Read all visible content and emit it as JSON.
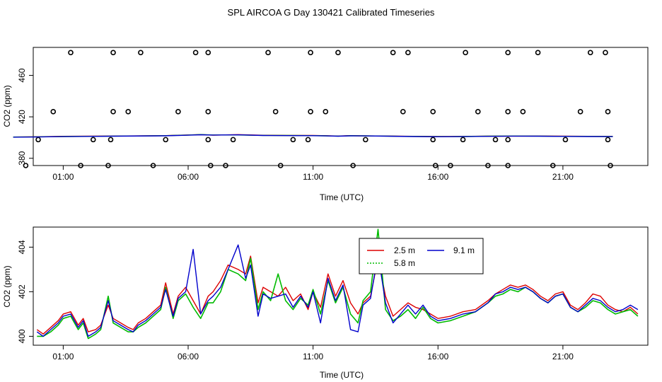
{
  "title": "SPL AIRCOA G  Day 130421  Calibrated Timeseries",
  "chart_data": [
    {
      "type": "scatter",
      "xlabel": "Time (UTC)",
      "ylabel": "CO2 (ppm)",
      "x_ticks": [
        1,
        6,
        11,
        16,
        21
      ],
      "x_tick_labels": [
        "01:00",
        "06:00",
        "11:00",
        "16:00",
        "21:00"
      ],
      "y_ticks": [
        380,
        420,
        460
      ],
      "y_tick_labels": [
        "380",
        "420",
        "460"
      ],
      "xlim": [
        -0.2,
        24.4
      ],
      "ylim": [
        373,
        487
      ],
      "markers": [
        [
          1.3,
          482
        ],
        [
          3.0,
          482
        ],
        [
          4.1,
          482
        ],
        [
          6.3,
          482
        ],
        [
          6.8,
          482
        ],
        [
          9.2,
          482
        ],
        [
          10.9,
          482
        ],
        [
          12.0,
          482
        ],
        [
          14.2,
          482
        ],
        [
          14.8,
          482
        ],
        [
          17.1,
          482
        ],
        [
          18.8,
          482
        ],
        [
          20.0,
          482
        ],
        [
          22.1,
          482
        ],
        [
          22.7,
          482
        ],
        [
          0.6,
          425
        ],
        [
          3.0,
          425
        ],
        [
          3.6,
          425
        ],
        [
          5.6,
          425
        ],
        [
          6.8,
          425
        ],
        [
          9.5,
          425
        ],
        [
          10.9,
          425
        ],
        [
          11.5,
          425
        ],
        [
          14.6,
          425
        ],
        [
          15.8,
          425
        ],
        [
          17.6,
          425
        ],
        [
          18.8,
          425
        ],
        [
          19.4,
          425
        ],
        [
          21.7,
          425
        ],
        [
          22.8,
          425
        ],
        [
          0,
          398
        ],
        [
          2.2,
          398
        ],
        [
          2.9,
          398
        ],
        [
          5.1,
          398
        ],
        [
          6.8,
          398
        ],
        [
          7.8,
          398
        ],
        [
          10.2,
          398
        ],
        [
          10.8,
          398
        ],
        [
          13.1,
          398
        ],
        [
          15.8,
          398
        ],
        [
          17.0,
          398
        ],
        [
          18.3,
          398
        ],
        [
          18.8,
          398
        ],
        [
          21.1,
          398
        ],
        [
          22.8,
          398
        ],
        [
          -0.5,
          373
        ],
        [
          1.7,
          373
        ],
        [
          2.8,
          373
        ],
        [
          4.6,
          373
        ],
        [
          6.9,
          373
        ],
        [
          7.5,
          373
        ],
        [
          9.7,
          373
        ],
        [
          12.6,
          373
        ],
        [
          15.9,
          373
        ],
        [
          16.5,
          373
        ],
        [
          18.0,
          373
        ],
        [
          18.8,
          373
        ],
        [
          20.6,
          373
        ],
        [
          22.9,
          373
        ]
      ],
      "series": [
        {
          "name": "2.5 m",
          "color": "#dd0000",
          "x": [
            -1,
            0,
            1,
            3,
            5,
            6,
            6.5,
            7,
            8,
            9,
            10,
            11,
            11.5,
            12,
            12.5,
            13,
            14,
            15,
            16,
            17,
            18,
            19,
            20,
            21,
            22,
            23
          ],
          "y": [
            400.5,
            400.8,
            401.2,
            401.5,
            401.8,
            402.5,
            402.8,
            402.3,
            402.8,
            402.2,
            402.1,
            402.0,
            401.8,
            401.5,
            401.9,
            401.6,
            401.5,
            401.2,
            401.0,
            401.1,
            401.3,
            401.4,
            401.5,
            401.3,
            401.2,
            401.1
          ]
        },
        {
          "name": "5.8 m",
          "color": "#00bb00",
          "x": [
            -1,
            0,
            1,
            3,
            5,
            6,
            6.5,
            7,
            8,
            9,
            10,
            11,
            11.5,
            12,
            12.5,
            13,
            14,
            15,
            16,
            17,
            18,
            19,
            20,
            21,
            22,
            23
          ],
          "y": [
            400.5,
            400.7,
            401.0,
            401.4,
            401.8,
            402.4,
            402.9,
            402.5,
            402.5,
            402.1,
            402.0,
            401.9,
            401.7,
            401.4,
            401.8,
            401.7,
            401.4,
            401.1,
            400.9,
            401.0,
            401.3,
            401.5,
            401.4,
            401.2,
            401.1,
            401.0
          ]
        },
        {
          "name": "9.1 m",
          "color": "#0000cc",
          "x": [
            -1,
            0,
            1,
            3,
            5,
            6,
            6.5,
            7,
            8,
            9,
            10,
            11,
            11.5,
            12,
            12.5,
            13,
            14,
            15,
            16,
            17,
            18,
            19,
            20,
            21,
            22,
            23
          ],
          "y": [
            400.4,
            400.6,
            400.9,
            401.3,
            401.7,
            402.3,
            402.7,
            402.4,
            402.6,
            402.0,
            401.9,
            401.8,
            401.6,
            401.3,
            401.7,
            401.6,
            401.3,
            401.0,
            400.8,
            400.9,
            401.2,
            401.4,
            401.3,
            401.1,
            401.0,
            400.9
          ]
        }
      ]
    },
    {
      "type": "line",
      "xlabel": "Time (UTC)",
      "ylabel": "CO2 (ppm)",
      "x_ticks": [
        1,
        6,
        11,
        16,
        21
      ],
      "x_tick_labels": [
        "01:00",
        "06:00",
        "11:00",
        "16:00",
        "21:00"
      ],
      "y_ticks": [
        400,
        402,
        404
      ],
      "y_tick_labels": [
        "400",
        "402",
        "404"
      ],
      "xlim": [
        -0.2,
        24.4
      ],
      "ylim": [
        399.6,
        404.9
      ],
      "legend": {
        "position": "top-center",
        "entries": [
          "2.5 m",
          "5.8 m",
          "9.1 m"
        ]
      },
      "series": [
        {
          "name": "2.5 m",
          "color": "#dd0000",
          "x": [
            -0.05,
            0.2,
            0.5,
            0.8,
            1.0,
            1.3,
            1.6,
            1.8,
            2.0,
            2.3,
            2.5,
            2.8,
            3.0,
            3.3,
            3.6,
            3.8,
            4.0,
            4.3,
            4.6,
            4.9,
            5.1,
            5.4,
            5.6,
            5.9,
            6.2,
            6.5,
            6.8,
            7.0,
            7.3,
            7.6,
            8.0,
            8.3,
            8.5,
            8.8,
            9.0,
            9.3,
            9.6,
            9.9,
            10.2,
            10.5,
            10.8,
            11.0,
            11.3,
            11.6,
            11.9,
            12.2,
            12.5,
            12.8,
            13.0,
            13.3,
            13.6,
            13.9,
            14.2,
            14.5,
            14.8,
            15.1,
            15.4,
            15.7,
            16.0,
            16.5,
            17.0,
            17.5,
            18.0,
            18.3,
            18.6,
            18.9,
            19.2,
            19.5,
            19.8,
            20.1,
            20.4,
            20.7,
            21.0,
            21.3,
            21.6,
            21.9,
            22.2,
            22.5,
            22.8,
            23.1,
            23.4,
            23.7,
            24.0
          ],
          "y": [
            400.3,
            400.1,
            400.4,
            400.7,
            401.0,
            401.1,
            400.5,
            400.8,
            400.2,
            400.3,
            400.5,
            401.4,
            400.8,
            400.6,
            400.4,
            400.3,
            400.6,
            400.8,
            401.1,
            401.4,
            402.4,
            401.0,
            401.8,
            402.2,
            401.6,
            401.0,
            401.8,
            402.0,
            402.5,
            403.2,
            403.0,
            402.8,
            403.6,
            401.5,
            402.2,
            402.0,
            401.8,
            402.2,
            401.6,
            401.9,
            401.2,
            402.0,
            401.3,
            402.8,
            401.8,
            402.5,
            401.5,
            401.0,
            401.5,
            401.8,
            403.5,
            401.8,
            400.9,
            401.2,
            401.5,
            401.3,
            401.2,
            401.0,
            400.8,
            400.9,
            401.1,
            401.2,
            401.6,
            401.9,
            402.1,
            402.3,
            402.2,
            402.3,
            402.1,
            401.8,
            401.6,
            401.9,
            402.0,
            401.4,
            401.2,
            401.5,
            401.9,
            401.8,
            401.4,
            401.2,
            401.1,
            401.3,
            401.0
          ]
        },
        {
          "name": "5.8 m",
          "color": "#00bb00",
          "x": [
            -0.05,
            0.2,
            0.5,
            0.8,
            1.0,
            1.3,
            1.6,
            1.8,
            2.0,
            2.3,
            2.5,
            2.8,
            3.0,
            3.3,
            3.6,
            3.8,
            4.0,
            4.3,
            4.6,
            4.9,
            5.1,
            5.4,
            5.6,
            5.9,
            6.2,
            6.5,
            6.8,
            7.0,
            7.3,
            7.6,
            8.0,
            8.3,
            8.5,
            8.8,
            9.0,
            9.3,
            9.6,
            9.9,
            10.2,
            10.5,
            10.8,
            11.0,
            11.3,
            11.6,
            11.9,
            12.2,
            12.5,
            12.8,
            13.0,
            13.3,
            13.6,
            13.9,
            14.2,
            14.5,
            14.8,
            15.1,
            15.4,
            15.7,
            16.0,
            16.5,
            17.0,
            17.5,
            18.0,
            18.3,
            18.6,
            18.9,
            19.2,
            19.5,
            19.8,
            20.1,
            20.4,
            20.7,
            21.0,
            21.3,
            21.6,
            21.9,
            22.2,
            22.5,
            22.8,
            23.1,
            23.4,
            23.7,
            24.0
          ],
          "y": [
            400.0,
            400.0,
            400.2,
            400.5,
            400.8,
            400.9,
            400.3,
            400.6,
            399.9,
            400.1,
            400.3,
            401.8,
            400.6,
            400.4,
            400.2,
            400.2,
            400.4,
            400.6,
            400.9,
            401.2,
            402.2,
            400.8,
            401.6,
            401.9,
            401.3,
            400.8,
            401.5,
            401.5,
            402.0,
            403.0,
            402.8,
            402.5,
            403.5,
            401.2,
            402.0,
            401.6,
            402.8,
            401.6,
            401.2,
            401.7,
            401.4,
            402.1,
            401.0,
            402.5,
            401.5,
            402.2,
            401.0,
            400.6,
            401.6,
            402.0,
            404.8,
            401.2,
            400.7,
            400.9,
            401.2,
            400.8,
            401.3,
            400.8,
            400.6,
            400.7,
            400.9,
            401.1,
            401.5,
            401.8,
            401.9,
            402.1,
            402.0,
            402.2,
            402.0,
            401.7,
            401.5,
            401.8,
            401.9,
            401.3,
            401.1,
            401.3,
            401.6,
            401.5,
            401.2,
            401.0,
            401.1,
            401.2,
            400.9
          ]
        },
        {
          "name": "9.1 m",
          "color": "#0000cc",
          "x": [
            -0.05,
            0.2,
            0.5,
            0.8,
            1.0,
            1.3,
            1.6,
            1.8,
            2.0,
            2.3,
            2.5,
            2.8,
            3.0,
            3.3,
            3.6,
            3.8,
            4.0,
            4.3,
            4.6,
            4.9,
            5.1,
            5.4,
            5.6,
            5.9,
            6.2,
            6.5,
            6.8,
            7.0,
            7.3,
            7.6,
            8.0,
            8.3,
            8.5,
            8.8,
            9.0,
            9.3,
            9.6,
            9.9,
            10.2,
            10.5,
            10.8,
            11.0,
            11.3,
            11.6,
            11.9,
            12.2,
            12.5,
            12.8,
            13.0,
            13.3,
            13.6,
            13.9,
            14.2,
            14.5,
            14.8,
            15.1,
            15.4,
            15.7,
            16.0,
            16.5,
            17.0,
            17.5,
            18.0,
            18.3,
            18.6,
            18.9,
            19.2,
            19.5,
            19.8,
            20.1,
            20.4,
            20.7,
            21.0,
            21.3,
            21.6,
            21.9,
            22.2,
            22.5,
            22.8,
            23.1,
            23.4,
            23.7,
            24.0
          ],
          "y": [
            400.2,
            400.0,
            400.3,
            400.6,
            400.9,
            401.0,
            400.4,
            400.7,
            400.0,
            400.2,
            400.4,
            401.6,
            400.7,
            400.5,
            400.3,
            400.2,
            400.5,
            400.7,
            401.0,
            401.3,
            402.1,
            400.9,
            401.7,
            402.0,
            403.9,
            401.0,
            401.6,
            401.8,
            402.2,
            403.0,
            404.1,
            402.6,
            403.2,
            400.9,
            401.9,
            401.7,
            401.8,
            401.9,
            401.3,
            401.8,
            401.3,
            402.0,
            400.6,
            402.6,
            401.6,
            402.3,
            400.3,
            400.2,
            401.4,
            401.7,
            403.7,
            401.5,
            400.6,
            401.0,
            401.4,
            401.0,
            401.4,
            400.9,
            400.7,
            400.8,
            401.0,
            401.1,
            401.5,
            401.9,
            402.0,
            402.2,
            402.1,
            402.2,
            402.0,
            401.7,
            401.5,
            401.8,
            401.9,
            401.3,
            401.1,
            401.4,
            401.7,
            401.6,
            401.3,
            401.1,
            401.2,
            401.4,
            401.2
          ]
        }
      ]
    }
  ]
}
